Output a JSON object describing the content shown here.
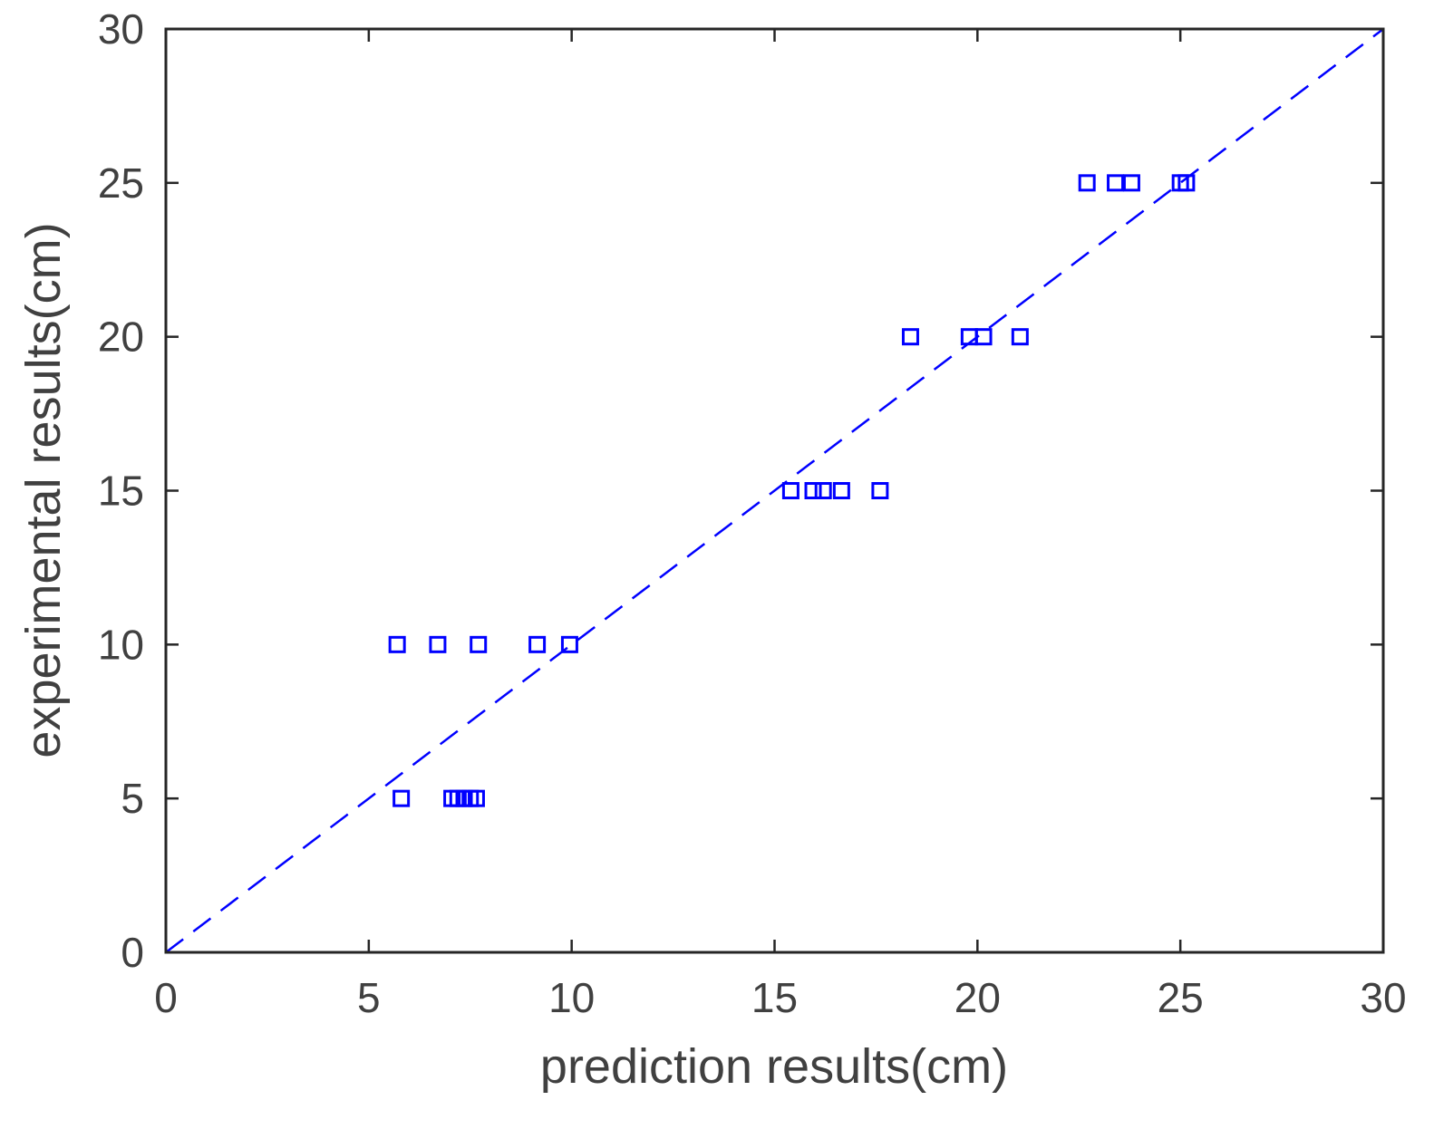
{
  "chart_data": {
    "type": "scatter",
    "xlabel": "prediction results(cm)",
    "ylabel": "experimental results(cm)",
    "xlim": [
      0,
      30
    ],
    "ylim": [
      0,
      30
    ],
    "x_ticks": [
      "0",
      "5",
      "10",
      "15",
      "20",
      "25",
      "30"
    ],
    "y_ticks": [
      "0",
      "5",
      "10",
      "15",
      "20",
      "25",
      "30"
    ],
    "grid": false,
    "marker": "square-open",
    "colors": {
      "points": "#0000ff",
      "reference_line": "#0000ff",
      "axes": "#262626",
      "text": "#404040"
    },
    "reference_line": {
      "style": "dashed",
      "from": [
        0,
        0
      ],
      "to": [
        30,
        30
      ]
    },
    "points": [
      {
        "x": 5.8,
        "y": 5
      },
      {
        "x": 7.05,
        "y": 5
      },
      {
        "x": 7.2,
        "y": 5
      },
      {
        "x": 7.35,
        "y": 5
      },
      {
        "x": 7.5,
        "y": 5
      },
      {
        "x": 7.65,
        "y": 5
      },
      {
        "x": 5.7,
        "y": 10
      },
      {
        "x": 6.7,
        "y": 10
      },
      {
        "x": 7.7,
        "y": 10
      },
      {
        "x": 9.15,
        "y": 10
      },
      {
        "x": 9.95,
        "y": 10
      },
      {
        "x": 15.4,
        "y": 15
      },
      {
        "x": 15.95,
        "y": 15
      },
      {
        "x": 16.2,
        "y": 15
      },
      {
        "x": 16.65,
        "y": 15
      },
      {
        "x": 17.6,
        "y": 15
      },
      {
        "x": 18.35,
        "y": 20
      },
      {
        "x": 19.8,
        "y": 20
      },
      {
        "x": 20.15,
        "y": 20
      },
      {
        "x": 21.05,
        "y": 20
      },
      {
        "x": 22.7,
        "y": 25
      },
      {
        "x": 23.4,
        "y": 25
      },
      {
        "x": 23.8,
        "y": 25
      },
      {
        "x": 25.0,
        "y": 25
      },
      {
        "x": 25.15,
        "y": 25
      }
    ]
  }
}
